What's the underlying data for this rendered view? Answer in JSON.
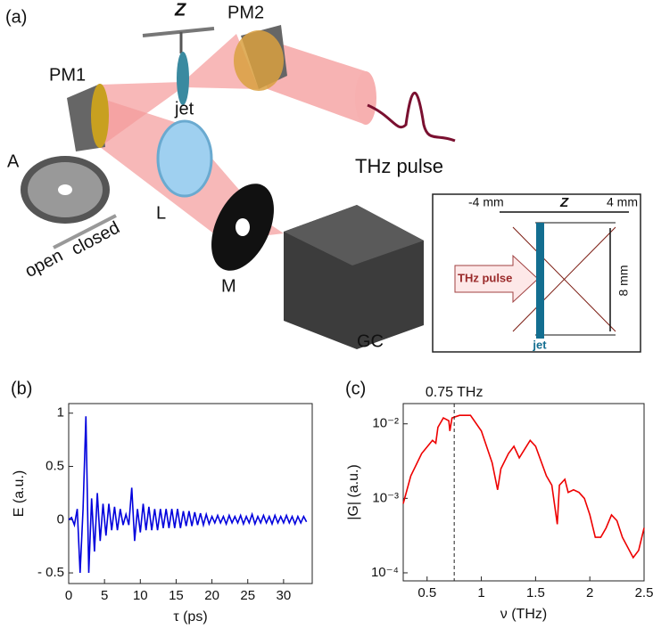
{
  "diagram": {
    "panel_label": "(a)",
    "labels": {
      "pm1": "PM1",
      "pm2": "PM2",
      "z": "Z",
      "jet": "jet",
      "a": "A",
      "l": "L",
      "m": "M",
      "gc": "GC",
      "thz_pulse": "THz pulse",
      "open": "open",
      "closed": "closed"
    },
    "inset": {
      "minus4": "-4 mm",
      "z": "Z",
      "plus4": "4 mm",
      "height": "8 mm",
      "thz_pulse": "THz pulse",
      "jet": "jet"
    }
  },
  "chart_data": [
    {
      "type": "line",
      "panel_label": "(b)",
      "x_label": "τ (ps)",
      "y_label": "E (a.u.)",
      "color": "#0000dd",
      "x": [
        0,
        0.4,
        0.8,
        1.2,
        1.6,
        2.0,
        2.4,
        2.8,
        3.2,
        3.6,
        4.0,
        4.4,
        4.8,
        5.2,
        5.6,
        6.0,
        6.4,
        6.8,
        7.2,
        7.6,
        8.0,
        8.4,
        8.8,
        9.2,
        9.6,
        10.0,
        10.4,
        10.8,
        11.2,
        11.6,
        12.0,
        12.4,
        12.8,
        13.2,
        13.6,
        14.0,
        14.4,
        14.8,
        15.2,
        15.6,
        16.0,
        16.4,
        16.8,
        17.2,
        17.6,
        18.0,
        18.4,
        18.8,
        19.2,
        19.6,
        20.0,
        20.4,
        20.8,
        21.2,
        21.6,
        22.0,
        22.4,
        22.8,
        23.2,
        23.6,
        24.0,
        24.4,
        24.8,
        25.2,
        25.6,
        26.0,
        26.4,
        26.8,
        27.2,
        27.6,
        28.0,
        28.4,
        28.8,
        29.2,
        29.6,
        30.0,
        30.4,
        30.8,
        31.2,
        31.6,
        32.0,
        32.4,
        32.8,
        33.2
      ],
      "values": [
        0,
        0.02,
        -0.05,
        0.1,
        -0.5,
        0.1,
        0.97,
        -0.5,
        0.2,
        -0.3,
        0.25,
        -0.2,
        0.15,
        -0.15,
        0.15,
        -0.1,
        0.12,
        -0.1,
        0.1,
        -0.05,
        0.05,
        -0.05,
        0.3,
        -0.2,
        0.1,
        -0.12,
        0.15,
        -0.1,
        0.12,
        -0.1,
        0.1,
        -0.1,
        0.1,
        -0.08,
        0.1,
        -0.08,
        0.1,
        -0.08,
        0.1,
        -0.08,
        0.08,
        -0.06,
        0.08,
        -0.06,
        0.07,
        -0.05,
        0.06,
        -0.05,
        0.05,
        -0.04,
        0.03,
        -0.03,
        0.04,
        -0.03,
        0.03,
        -0.04,
        0.04,
        -0.03,
        0.03,
        -0.03,
        0.04,
        -0.04,
        0.03,
        -0.03,
        0.05,
        -0.04,
        0.03,
        -0.03,
        0.04,
        -0.03,
        0.03,
        -0.04,
        0.04,
        -0.03,
        0.03,
        -0.03,
        0.04,
        -0.03,
        0.03,
        -0.04,
        0.03,
        -0.03,
        0.03,
        -0.02
      ],
      "xlim": [
        0,
        34
      ],
      "xticks": [
        0,
        5,
        10,
        15,
        20,
        25,
        30
      ],
      "ylim": [
        -0.6,
        1.09
      ],
      "yticks": [
        {
          "value": -0.5,
          "label": "- 0.5"
        },
        0,
        0.5,
        1
      ]
    },
    {
      "type": "line",
      "panel_label": "(c)",
      "x_label": "ν (THz)",
      "y_label": "|G| (a.u.)",
      "color": "#ee0000",
      "log_y": true,
      "annotation": {
        "text": "0.75 THz",
        "x": 0.75
      },
      "x": [
        0.28,
        0.35,
        0.45,
        0.55,
        0.58,
        0.6,
        0.65,
        0.7,
        0.71,
        0.73,
        0.8,
        0.9,
        1.0,
        1.1,
        1.15,
        1.18,
        1.25,
        1.3,
        1.35,
        1.45,
        1.5,
        1.6,
        1.65,
        1.7,
        1.72,
        1.77,
        1.8,
        1.85,
        1.9,
        1.95,
        2.0,
        2.05,
        2.1,
        2.15,
        2.2,
        2.25,
        2.3,
        2.4,
        2.45,
        2.5
      ],
      "values": [
        0.00085,
        0.002,
        0.004,
        0.006,
        0.0055,
        0.009,
        0.012,
        0.011,
        0.008,
        0.012,
        0.013,
        0.013,
        0.008,
        0.003,
        0.0013,
        0.0025,
        0.004,
        0.005,
        0.0035,
        0.006,
        0.005,
        0.002,
        0.0015,
        0.00045,
        0.0015,
        0.0018,
        0.0012,
        0.0013,
        0.0012,
        0.001,
        0.0006,
        0.0003,
        0.0003,
        0.0004,
        0.0006,
        0.0005,
        0.0003,
        0.00016,
        0.0002,
        0.0004
      ],
      "xlim": [
        0.28,
        2.5
      ],
      "xticks": [
        0.5,
        1,
        1.5,
        2,
        2.5
      ],
      "ylim": [
        7.8e-05,
        0.0187
      ],
      "yticks": [
        {
          "value": 0.0001,
          "label": "10⁻⁴"
        },
        {
          "value": 0.001,
          "label": "10⁻³"
        },
        {
          "value": 0.01,
          "label": "10⁻²"
        }
      ]
    }
  ]
}
